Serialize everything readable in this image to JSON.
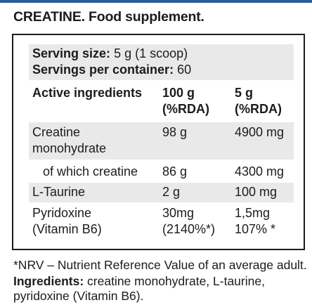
{
  "title": "CREATINE. Food supplement.",
  "serving": {
    "size_label": "Serving size:",
    "size_value": "5 g (1 scoop)",
    "per_container_label": "Servings per container:",
    "per_container_value": "60"
  },
  "table": {
    "header": {
      "col1": "Active ingredients",
      "col2_line1": "100 g",
      "col2_line2": "(%RDA)",
      "col3_line1": "5 g",
      "col3_line2": "(%RDA)"
    },
    "rows": [
      {
        "name_line1": "Creatine",
        "name_line2": "monohydrate",
        "v100_line1": "98 g",
        "v100_line2": "",
        "v5_line1": "4900 mg",
        "v5_line2": ""
      },
      {
        "name_line1": "of which creatine",
        "name_line2": "",
        "v100_line1": "86 g",
        "v100_line2": "",
        "v5_line1": "4300 mg",
        "v5_line2": ""
      },
      {
        "name_line1": "L-Taurine",
        "name_line2": "",
        "v100_line1": "2 g",
        "v100_line2": "",
        "v5_line1": "100 mg",
        "v5_line2": ""
      },
      {
        "name_line1": "Pyridoxine",
        "name_line2": "(Vitamin B6)",
        "v100_line1": "30mg",
        "v100_line2": "(2140%*)",
        "v5_line1": "1,5mg",
        "v5_line2": "107% *"
      }
    ]
  },
  "footnote": "*NRV – Nutrient Reference Value of an average adult.",
  "ingredients": {
    "label": "Ingredients:",
    "line1": "creatine monohydrate, L-taurine,",
    "line2": "pyridoxine (Vitamin B6)."
  },
  "colors": {
    "accent_rule": "#1f5fa3",
    "row_shade": "#e9e9e9",
    "text": "#1c1c1c"
  }
}
